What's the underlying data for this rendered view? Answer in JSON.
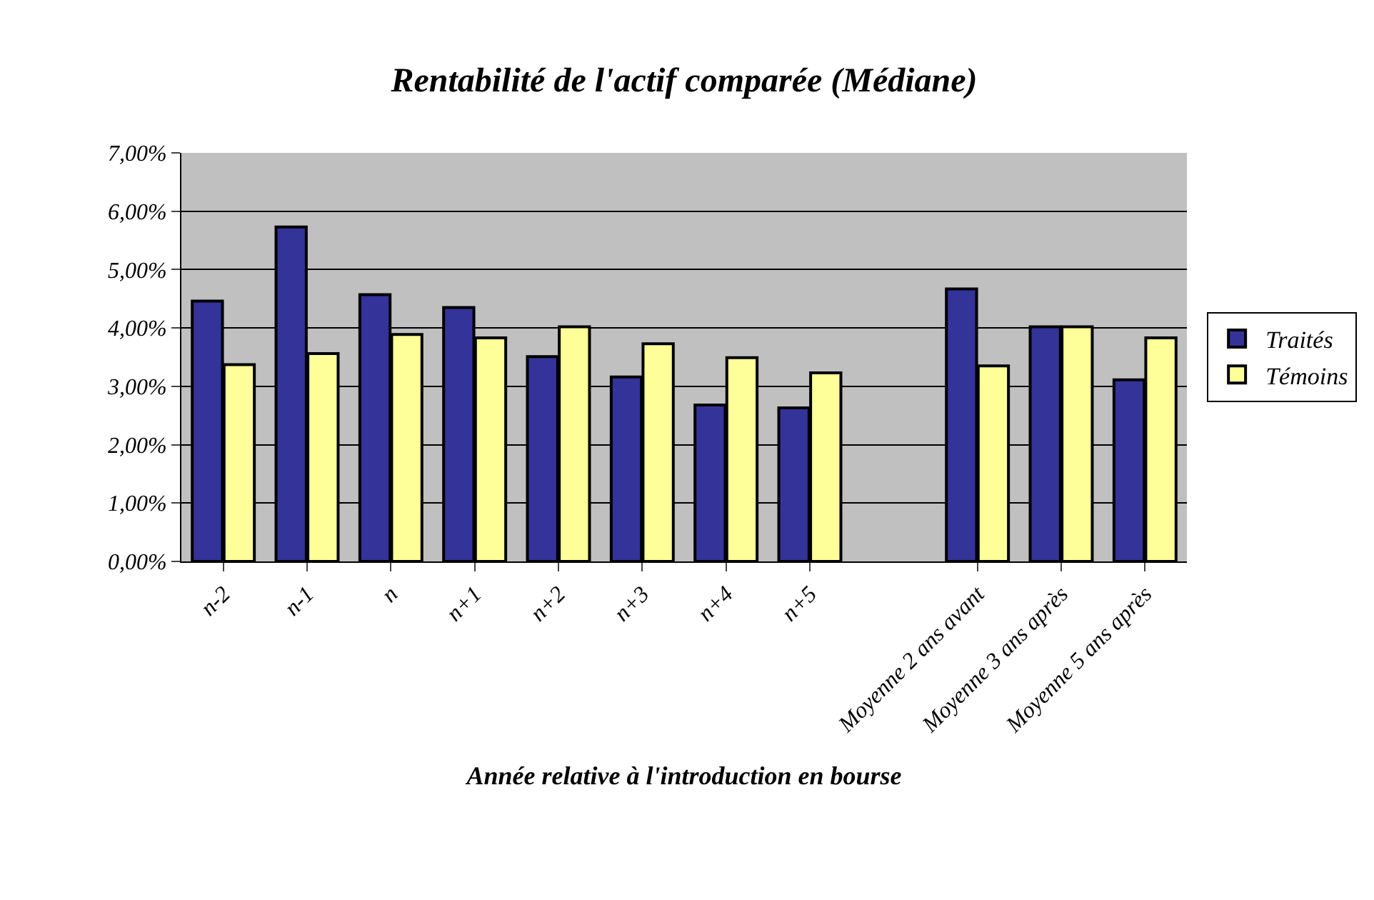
{
  "chart_data": {
    "type": "bar",
    "title": "Rentabilité de l'actif comparée (Médiane)",
    "xlabel": "Année relative à l'introduction en bourse",
    "categories": [
      "n-2",
      "n-1",
      "n",
      "n+1",
      "n+2",
      "n+3",
      "n+4",
      "n+5",
      null,
      "Moyenne 2 ans avant",
      "Moyenne 3 ans après",
      "Moyenne 5 ans après"
    ],
    "series": [
      {
        "name": "Traités",
        "color": "#333399",
        "values": [
          4.46,
          5.73,
          4.57,
          4.35,
          3.51,
          3.16,
          2.68,
          2.63,
          null,
          4.67,
          4.02,
          3.11
        ]
      },
      {
        "name": "Témoins",
        "color": "#ffff99",
        "values": [
          3.37,
          3.56,
          3.89,
          3.83,
          4.02,
          3.73,
          3.49,
          3.23,
          null,
          3.35,
          4.02,
          3.83
        ]
      }
    ],
    "ylim": [
      0,
      7
    ],
    "yticks": [
      {
        "value": 0,
        "label": "0,00%"
      },
      {
        "value": 1,
        "label": "1,00%"
      },
      {
        "value": 2,
        "label": "2,00%"
      },
      {
        "value": 3,
        "label": "3,00%"
      },
      {
        "value": 4,
        "label": "4,00%"
      },
      {
        "value": 5,
        "label": "5,00%"
      },
      {
        "value": 6,
        "label": "6,00%"
      },
      {
        "value": 7,
        "label": "7,00%"
      }
    ],
    "grid": "y",
    "legend": "right"
  }
}
